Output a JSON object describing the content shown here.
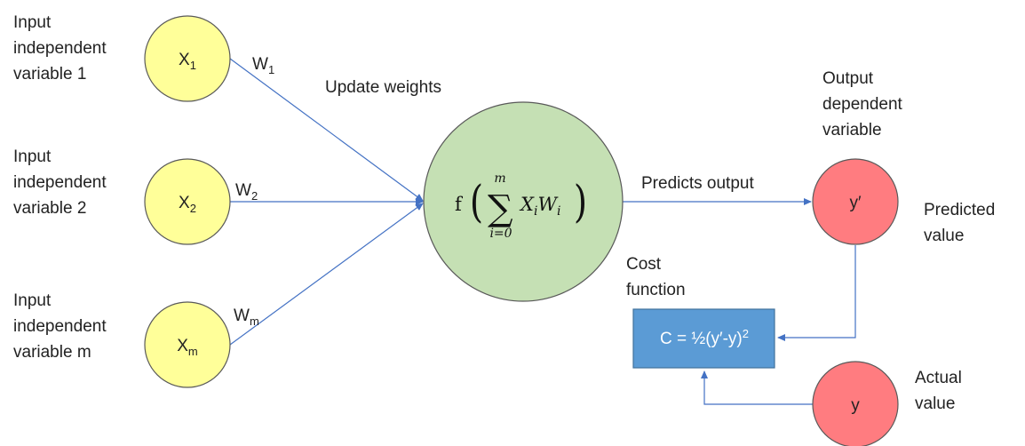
{
  "inputs": [
    {
      "label_lines": [
        "Input",
        "independent",
        "variable 1"
      ],
      "node": "X",
      "sub": "1",
      "weight": "W",
      "weight_sub": "1"
    },
    {
      "label_lines": [
        "Input",
        "independent",
        "variable 2"
      ],
      "node": "X",
      "sub": "2",
      "weight": "W",
      "weight_sub": "2"
    },
    {
      "label_lines": [
        "Input",
        "independent",
        "variable m"
      ],
      "node": "X",
      "sub": "m",
      "weight": "W",
      "weight_sub": "m"
    }
  ],
  "update_weights": "Update weights",
  "neuron": {
    "f": "f",
    "sum_top": "m",
    "sum_bottom": "i=0",
    "term_x": "X",
    "term_x_sub": "i",
    "term_w": "W",
    "term_w_sub": "i"
  },
  "predicts_output": "Predicts output",
  "output_label_lines": [
    "Output",
    "dependent",
    "variable"
  ],
  "predicted_node": "y′",
  "predicted_label_lines": [
    "Predicted",
    "value"
  ],
  "cost_label_lines": [
    "Cost",
    "function"
  ],
  "cost_formula": "C = ½(y′-y)",
  "cost_formula_sup": "2",
  "actual_node": "y",
  "actual_label_lines": [
    "Actual",
    "value"
  ],
  "colors": {
    "input_fill": "#ffff99",
    "neuron_fill": "#c5e0b4",
    "output_fill": "#ff7c80",
    "cost_fill": "#5b9bd5",
    "arrow": "#4472c4",
    "outline": "#595959"
  }
}
